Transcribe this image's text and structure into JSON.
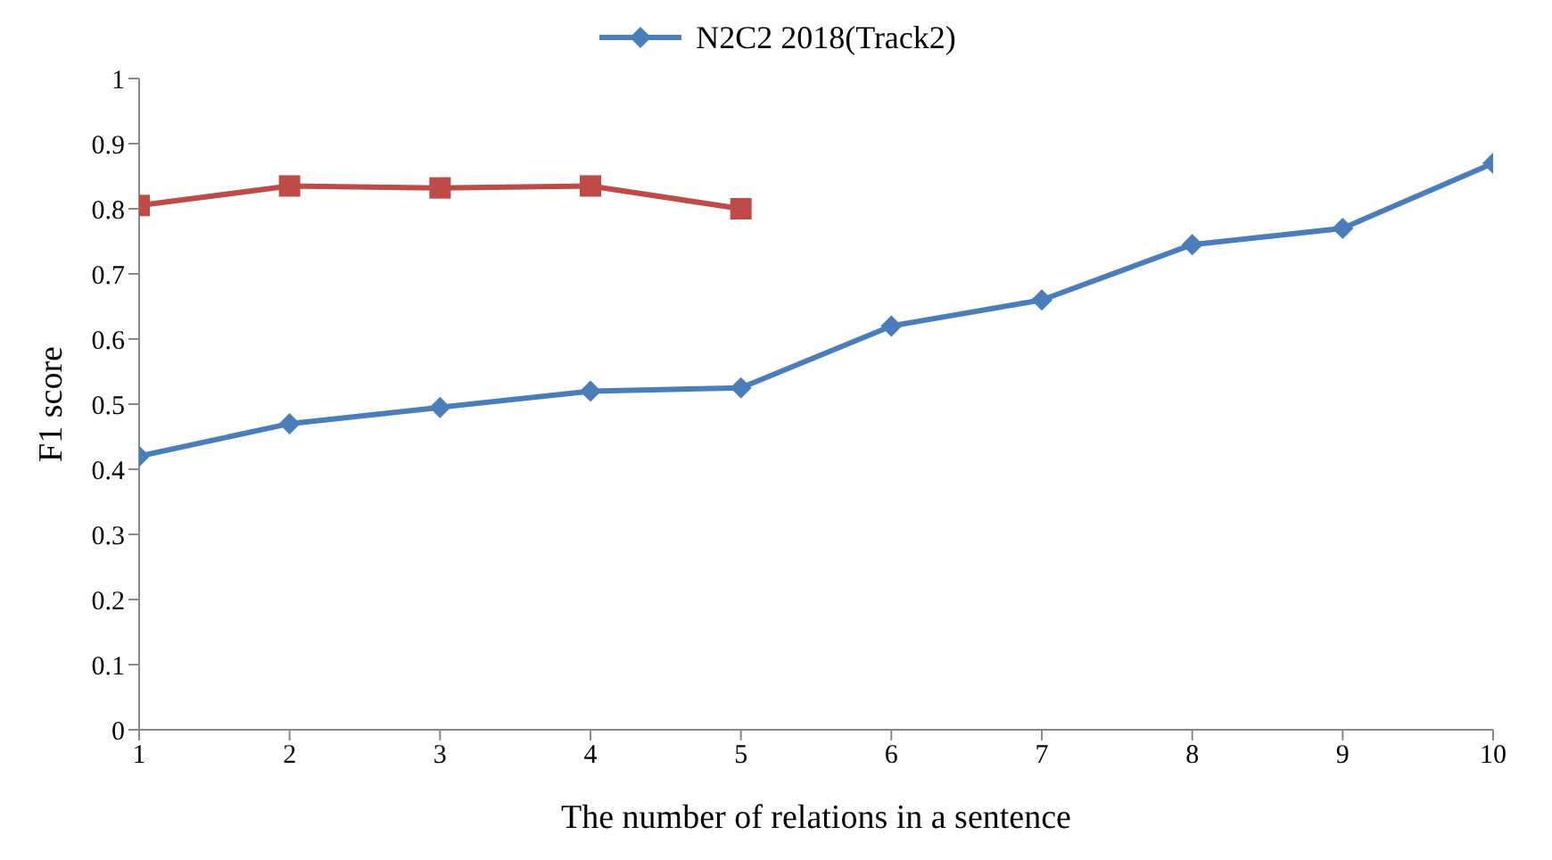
{
  "chart_data": {
    "type": "line",
    "xlabel": "The number  of relations in a sentence",
    "ylabel": "F1 score",
    "x": [
      1,
      2,
      3,
      4,
      5,
      6,
      7,
      8,
      9,
      10
    ],
    "series": [
      {
        "name": "N2C2 2018(Track2)",
        "color": "#4a7ebb",
        "marker": "diamond",
        "values": [
          0.42,
          0.47,
          0.495,
          0.52,
          0.525,
          0.62,
          0.66,
          0.745,
          0.77,
          0.87
        ]
      },
      {
        "color": "#be4b48",
        "marker": "square",
        "values": [
          0.805,
          0.835,
          0.832,
          0.835,
          0.8,
          null,
          null,
          null,
          null,
          null
        ]
      }
    ],
    "xlim": [
      1,
      10
    ],
    "xticks": [
      1,
      2,
      3,
      4,
      5,
      6,
      7,
      8,
      9,
      10
    ],
    "ylim": [
      0,
      1
    ],
    "yticks": [
      0,
      0.1,
      0.2,
      0.3,
      0.4,
      0.5,
      0.6,
      0.7,
      0.8,
      0.9,
      1
    ],
    "grid": false,
    "legend": "top"
  }
}
